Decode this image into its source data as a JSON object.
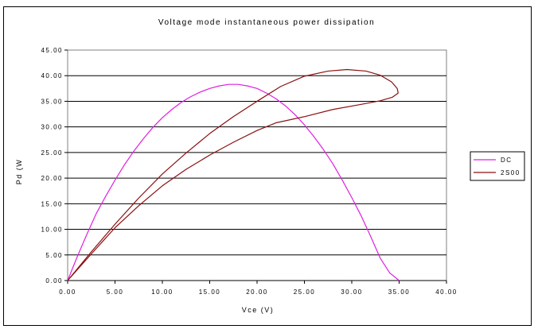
{
  "chart_data": {
    "type": "line",
    "title": "Voltage mode instantaneous power dissipation",
    "xlabel": "Vce (V)",
    "ylabel": "Pd (W",
    "xlim": [
      0,
      40
    ],
    "ylim": [
      0,
      45
    ],
    "x_ticks": [
      "0.00",
      "5.00",
      "10.00",
      "15.00",
      "20.00",
      "25.00",
      "30.00",
      "35.00",
      "40.00"
    ],
    "y_ticks": [
      "0.00",
      "5.00",
      "10.00",
      "15.00",
      "20.00",
      "25.00",
      "30.00",
      "35.00",
      "40.00",
      "45.00"
    ],
    "grid": "horizontal",
    "legend_position": "right",
    "series": [
      {
        "name": "DC",
        "color": "#e020e0",
        "points": [
          [
            0,
            0
          ],
          [
            1,
            4.6
          ],
          [
            2,
            8.9
          ],
          [
            3,
            13
          ],
          [
            4,
            16.4
          ],
          [
            5,
            19.6
          ],
          [
            6,
            22.6
          ],
          [
            7,
            25.3
          ],
          [
            8,
            27.7
          ],
          [
            9,
            29.9
          ],
          [
            10,
            31.8
          ],
          [
            11,
            33.4
          ],
          [
            12,
            34.8
          ],
          [
            13,
            35.9
          ],
          [
            14,
            36.8
          ],
          [
            15,
            37.5
          ],
          [
            16,
            38.0
          ],
          [
            17,
            38.3
          ],
          [
            18,
            38.3
          ],
          [
            19,
            38.0
          ],
          [
            20,
            37.5
          ],
          [
            21,
            36.6
          ],
          [
            22,
            35.5
          ],
          [
            23,
            34.1
          ],
          [
            24,
            32.4
          ],
          [
            25,
            30.4
          ],
          [
            26,
            28.1
          ],
          [
            27,
            25.6
          ],
          [
            28,
            22.8
          ],
          [
            29,
            19.6
          ],
          [
            30,
            16.2
          ],
          [
            31,
            12.6
          ],
          [
            32,
            8.6
          ],
          [
            33,
            4.4
          ],
          [
            34,
            1.5
          ],
          [
            35,
            0
          ]
        ]
      },
      {
        "name": "2S00",
        "color": "#8b1010",
        "points": [
          [
            0,
            0
          ],
          [
            2.5,
            5.6
          ],
          [
            5,
            11
          ],
          [
            7.5,
            16.1
          ],
          [
            10,
            20.8
          ],
          [
            12.5,
            24.9
          ],
          [
            15,
            28.7
          ],
          [
            17.5,
            32
          ],
          [
            20,
            35
          ],
          [
            22.5,
            37.9
          ],
          [
            25,
            39.9
          ],
          [
            27.5,
            40.9
          ],
          [
            29.5,
            41.2
          ],
          [
            31.5,
            40.9
          ],
          [
            33,
            40.1
          ],
          [
            34.2,
            38.8
          ],
          [
            34.8,
            37.5
          ],
          [
            34.9,
            36.6
          ],
          [
            34.3,
            35.8
          ],
          [
            33,
            35.1
          ],
          [
            31,
            34.4
          ],
          [
            28,
            33.4
          ],
          [
            25,
            32.0
          ],
          [
            22,
            30.8
          ],
          [
            20,
            29.3
          ],
          [
            17.5,
            27
          ],
          [
            15,
            24.5
          ],
          [
            12.5,
            21.7
          ],
          [
            10,
            18.5
          ],
          [
            7.5,
            14.6
          ],
          [
            5,
            10.3
          ],
          [
            2.5,
            5.2
          ],
          [
            0,
            0
          ]
        ]
      }
    ]
  }
}
